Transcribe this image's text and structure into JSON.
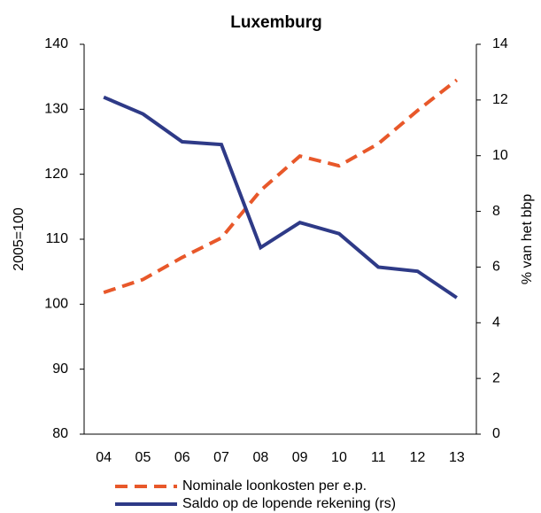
{
  "chart_data": {
    "type": "line",
    "title": "Luxemburg",
    "categories": [
      "04",
      "05",
      "06",
      "07",
      "08",
      "09",
      "10",
      "11",
      "12",
      "13"
    ],
    "y_label": "2005=100",
    "y2_label": "% van het bbp",
    "ylim": [
      80,
      140
    ],
    "yticks": [
      80,
      90,
      100,
      110,
      120,
      130,
      140
    ],
    "y2lim": [
      0,
      14
    ],
    "y2ticks": [
      0,
      2,
      4,
      6,
      8,
      10,
      12,
      14
    ],
    "series": [
      {
        "name": "Nominale loonkosten per e.p.",
        "color": "#e8582a",
        "dashed": true,
        "values": [
          101.8,
          103.8,
          107.2,
          110.2,
          117.5,
          122.8,
          121.3,
          124.7,
          129.8,
          134.5
        ]
      },
      {
        "name": "Saldo op de lopende rekening (rs)",
        "color": "#2e3a87",
        "axis": "y2",
        "values": [
          12.1,
          11.5,
          10.5,
          10.4,
          6.7,
          7.6,
          7.2,
          6.0,
          5.85,
          4.9
        ]
      }
    ]
  }
}
